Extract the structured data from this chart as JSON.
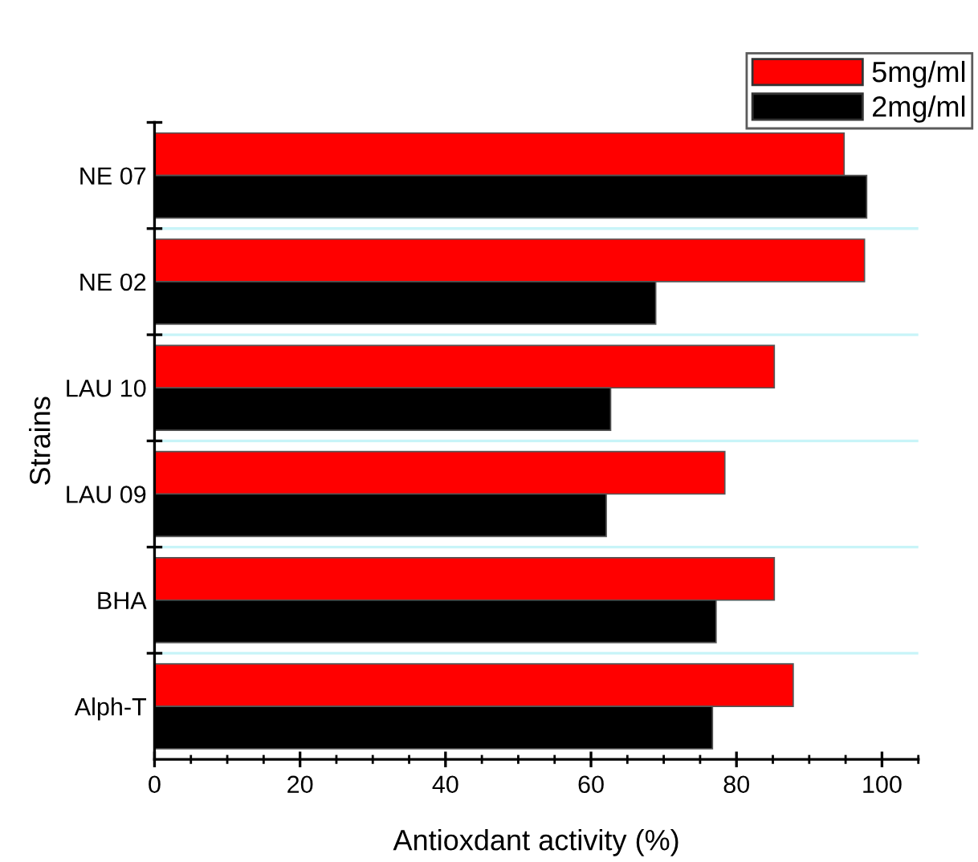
{
  "chart_data": {
    "type": "bar",
    "orientation": "horizontal",
    "xlabel": "Antioxdant activity (%)",
    "ylabel": "Strains",
    "categories": [
      "NE 07",
      "NE 02",
      "LAU 10",
      "LAU 09",
      "BHA",
      "Alph-T"
    ],
    "series": [
      {
        "name": "5mg/ml",
        "color": "#ff0000",
        "values": [
          94.8,
          97.6,
          85.2,
          78.4,
          85.2,
          87.8
        ]
      },
      {
        "name": "2mg/ml",
        "color": "#000000",
        "values": [
          97.9,
          68.9,
          62.7,
          62.1,
          77.2,
          76.7
        ]
      }
    ],
    "xlim": [
      0,
      105
    ],
    "xticks": [
      0,
      {
        "value": 5,
        "label": null
      },
      {
        "value": 10,
        "label": null
      },
      {
        "value": 15,
        "label": null
      },
      20,
      {
        "value": 25,
        "label": null
      },
      {
        "value": 30,
        "label": null
      },
      {
        "value": 35,
        "label": null
      },
      40,
      {
        "value": 45,
        "label": null
      },
      {
        "value": 50,
        "label": null
      },
      {
        "value": 55,
        "label": null
      },
      60,
      {
        "value": 65,
        "label": null
      },
      {
        "value": 70,
        "label": null
      },
      {
        "value": 75,
        "label": null
      },
      80,
      {
        "value": 85,
        "label": null
      },
      {
        "value": 90,
        "label": null
      },
      {
        "value": 95,
        "label": null
      },
      100,
      {
        "value": 105,
        "label": null
      }
    ],
    "grid": "y",
    "legend": "top right"
  }
}
